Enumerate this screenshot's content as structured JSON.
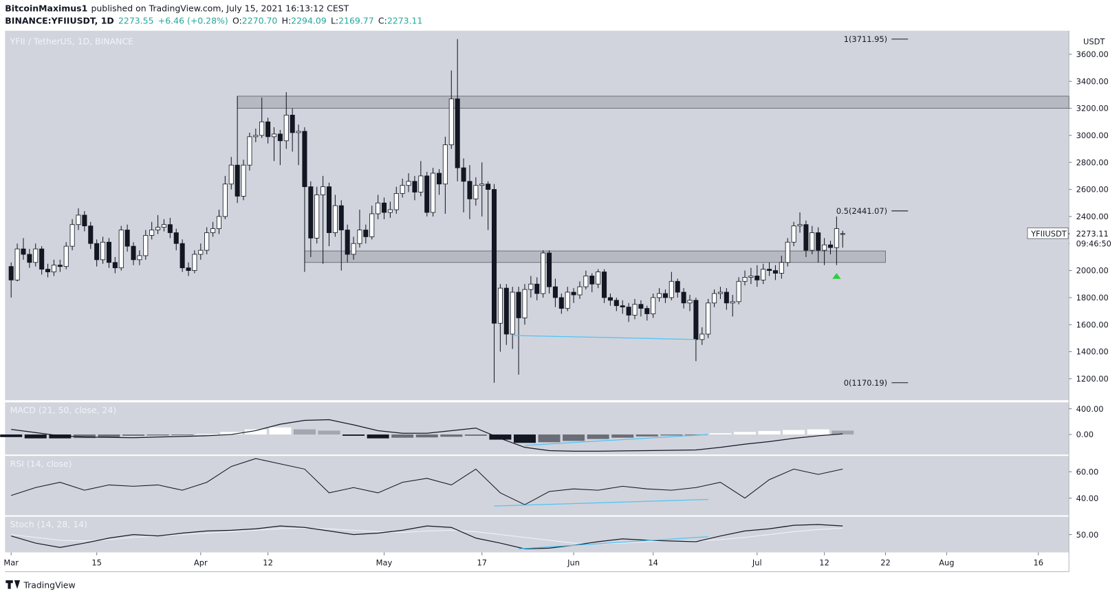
{
  "header": {
    "author": "BitcoinMaximus1",
    "published": "published on TradingView.com, July 15, 2021 16:13:12 CEST",
    "symbol": "BINANCE:YFIIUSDT, 1D",
    "last": "2273.55",
    "change": "+6.46 (+0.28%)",
    "ohlc": [
      {
        "key": "O:",
        "value": "2270.70"
      },
      {
        "key": "H:",
        "value": "2294.09"
      },
      {
        "key": "L:",
        "value": "2169.77"
      },
      {
        "key": "C:",
        "value": "2273.11"
      }
    ]
  },
  "footer": {
    "brand": "TradingView"
  },
  "chart_data": {
    "type": "candlestick",
    "title": "YFII / TetherUS, 1D, BINANCE",
    "y_axis_label": "USDT",
    "candle_colors": {
      "up": "#ffffff",
      "down": "#131722"
    },
    "xlim": [
      "2021-02-28",
      "2021-08-21"
    ],
    "ylim": [
      1041,
      3774
    ],
    "yticks": [
      {
        "value": 1200,
        "label": "1200.00"
      },
      {
        "value": 1400,
        "label": "1400.00"
      },
      {
        "value": 1600,
        "label": "1600.00"
      },
      {
        "value": 1800,
        "label": "1800.00"
      },
      {
        "value": 2000,
        "label": "2000.00"
      },
      {
        "value": 2200,
        "label": "2200.00"
      },
      {
        "value": 2400,
        "label": "2400.00"
      },
      {
        "value": 2600,
        "label": "2600.00"
      },
      {
        "value": 2800,
        "label": "2800.00"
      },
      {
        "value": 3000,
        "label": "3000.00"
      },
      {
        "value": 3200,
        "label": "3200.00"
      },
      {
        "value": 3400,
        "label": "3400.00"
      },
      {
        "value": 3600,
        "label": "3600.00"
      }
    ],
    "xticks": [
      {
        "value": "2021-03-01",
        "label": "Mar"
      },
      {
        "value": "2021-03-15",
        "label": "15"
      },
      {
        "value": "2021-04-01",
        "label": "Apr"
      },
      {
        "value": "2021-04-12",
        "label": "12"
      },
      {
        "value": "2021-05-01",
        "label": "May"
      },
      {
        "value": "2021-05-17",
        "label": "17"
      },
      {
        "value": "2021-06-01",
        "label": "Jun"
      },
      {
        "value": "2021-06-14",
        "label": "14"
      },
      {
        "value": "2021-07-01",
        "label": "Jul"
      },
      {
        "value": "2021-07-12",
        "label": "12"
      },
      {
        "value": "2021-07-22",
        "label": "22"
      },
      {
        "value": "2021-08-01",
        "label": "Aug"
      },
      {
        "value": "2021-08-16",
        "label": "16"
      }
    ],
    "x": [
      "2021-03-01",
      "2021-03-02",
      "2021-03-03",
      "2021-03-04",
      "2021-03-05",
      "2021-03-06",
      "2021-03-07",
      "2021-03-08",
      "2021-03-09",
      "2021-03-10",
      "2021-03-11",
      "2021-03-12",
      "2021-03-13",
      "2021-03-14",
      "2021-03-15",
      "2021-03-16",
      "2021-03-17",
      "2021-03-18",
      "2021-03-19",
      "2021-03-20",
      "2021-03-21",
      "2021-03-22",
      "2021-03-23",
      "2021-03-24",
      "2021-03-25",
      "2021-03-26",
      "2021-03-27",
      "2021-03-28",
      "2021-03-29",
      "2021-03-30",
      "2021-03-31",
      "2021-04-01",
      "2021-04-02",
      "2021-04-03",
      "2021-04-04",
      "2021-04-05",
      "2021-04-06",
      "2021-04-07",
      "2021-04-08",
      "2021-04-09",
      "2021-04-10",
      "2021-04-11",
      "2021-04-12",
      "2021-04-13",
      "2021-04-14",
      "2021-04-15",
      "2021-04-16",
      "2021-04-17",
      "2021-04-18",
      "2021-04-19",
      "2021-04-20",
      "2021-04-21",
      "2021-04-22",
      "2021-04-23",
      "2021-04-24",
      "2021-04-25",
      "2021-04-26",
      "2021-04-27",
      "2021-04-28",
      "2021-04-29",
      "2021-04-30",
      "2021-05-01",
      "2021-05-02",
      "2021-05-03",
      "2021-05-04",
      "2021-05-05",
      "2021-05-06",
      "2021-05-07",
      "2021-05-08",
      "2021-05-09",
      "2021-05-10",
      "2021-05-11",
      "2021-05-12",
      "2021-05-13",
      "2021-05-14",
      "2021-05-15",
      "2021-05-16",
      "2021-05-17",
      "2021-05-18",
      "2021-05-19",
      "2021-05-20",
      "2021-05-21",
      "2021-05-22",
      "2021-05-23",
      "2021-05-24",
      "2021-05-25",
      "2021-05-26",
      "2021-05-27",
      "2021-05-28",
      "2021-05-29",
      "2021-05-30",
      "2021-05-31",
      "2021-06-01",
      "2021-06-02",
      "2021-06-03",
      "2021-06-04",
      "2021-06-05",
      "2021-06-06",
      "2021-06-07",
      "2021-06-08",
      "2021-06-09",
      "2021-06-10",
      "2021-06-11",
      "2021-06-12",
      "2021-06-13",
      "2021-06-14",
      "2021-06-15",
      "2021-06-16",
      "2021-06-17",
      "2021-06-18",
      "2021-06-19",
      "2021-06-20",
      "2021-06-21",
      "2021-06-22",
      "2021-06-23",
      "2021-06-24",
      "2021-06-25",
      "2021-06-26",
      "2021-06-27",
      "2021-06-28",
      "2021-06-29",
      "2021-06-30",
      "2021-07-01",
      "2021-07-02",
      "2021-07-03",
      "2021-07-04",
      "2021-07-05",
      "2021-07-06",
      "2021-07-07",
      "2021-07-08",
      "2021-07-09",
      "2021-07-10",
      "2021-07-11",
      "2021-07-12",
      "2021-07-13",
      "2021-07-14",
      "2021-07-15"
    ],
    "open": [
      2030,
      1930,
      2160,
      2120,
      2060,
      2160,
      2010,
      1990,
      2040,
      2030,
      2180,
      2340,
      2410,
      2330,
      2200,
      2080,
      2210,
      2060,
      2020,
      2300,
      2180,
      2080,
      2110,
      2260,
      2300,
      2320,
      2340,
      2280,
      2200,
      2020,
      2000,
      2120,
      2150,
      2280,
      2310,
      2400,
      2640,
      2780,
      2550,
      2780,
      2990,
      3000,
      3100,
      2990,
      3010,
      2960,
      3150,
      3020,
      3030,
      2620,
      2240,
      2560,
      2620,
      2280,
      2480,
      2300,
      2120,
      2200,
      2300,
      2250,
      2420,
      2500,
      2430,
      2450,
      2570,
      2630,
      2660,
      2580,
      2700,
      2430,
      2720,
      2640,
      2930,
      3270,
      2760,
      2660,
      2530,
      2630,
      2640,
      2600,
      1610,
      1870,
      1530,
      1840,
      1650,
      1860,
      1900,
      1830,
      2130,
      1880,
      1800,
      1720,
      1840,
      1820,
      1880,
      1960,
      1900,
      1990,
      1800,
      1780,
      1740,
      1730,
      1670,
      1750,
      1720,
      1680,
      1800,
      1830,
      1800,
      1920,
      1840,
      1760,
      1780,
      1490,
      1530,
      1760,
      1830,
      1840,
      1760,
      1770,
      1920,
      1950,
      1960,
      1930,
      2010,
      2000,
      1980,
      2060,
      2210,
      2330,
      2340,
      2150,
      2280,
      2150,
      2190,
      2170,
      2270.7
    ],
    "high": [
      2060,
      2200,
      2240,
      2160,
      2200,
      2180,
      2050,
      2080,
      2080,
      2210,
      2380,
      2460,
      2440,
      2360,
      2230,
      2250,
      2240,
      2100,
      2330,
      2340,
      2210,
      2150,
      2300,
      2360,
      2410,
      2380,
      2390,
      2310,
      2230,
      2060,
      2150,
      2200,
      2320,
      2360,
      2450,
      2700,
      2840,
      3290,
      2820,
      3020,
      3050,
      3280,
      3130,
      3060,
      3040,
      3320,
      3200,
      3080,
      3060,
      2660,
      2620,
      2700,
      2650,
      2560,
      2520,
      2340,
      2250,
      2450,
      2340,
      2480,
      2560,
      2540,
      2510,
      2620,
      2680,
      2720,
      2700,
      2810,
      2730,
      2760,
      2750,
      2990,
      3480,
      3711.95,
      2830,
      2780,
      2690,
      2800,
      2660,
      2640,
      1900,
      1900,
      1880,
      1880,
      1900,
      1960,
      1950,
      2150,
      2150,
      1940,
      1830,
      1880,
      1870,
      1920,
      2000,
      1980,
      2010,
      2010,
      1830,
      1800,
      1780,
      1760,
      1790,
      1780,
      1740,
      1830,
      1870,
      1860,
      1990,
      1940,
      1870,
      1820,
      1800,
      1580,
      1790,
      1860,
      1880,
      1870,
      1820,
      1950,
      2000,
      2020,
      2040,
      2050,
      2060,
      2040,
      2110,
      2240,
      2360,
      2430,
      2370,
      2330,
      2320,
      2240,
      2220,
      2400,
      2294.09
    ],
    "low": [
      1800,
      1920,
      2080,
      2020,
      2030,
      1970,
      1950,
      1960,
      1990,
      2010,
      2150,
      2300,
      2290,
      2160,
      2030,
      2050,
      2020,
      1980,
      2000,
      2140,
      2040,
      2040,
      2080,
      2230,
      2270,
      2290,
      2240,
      2150,
      1990,
      1960,
      1980,
      2080,
      2120,
      2250,
      2270,
      2380,
      2600,
      2500,
      2520,
      2740,
      2950,
      2980,
      2940,
      2810,
      2780,
      2900,
      2880,
      2780,
      1990,
      2100,
      2200,
      2050,
      2180,
      2250,
      2000,
      2060,
      2080,
      2170,
      2200,
      2230,
      2380,
      2380,
      2390,
      2420,
      2540,
      2580,
      2520,
      2550,
      2400,
      2400,
      2560,
      2420,
      2900,
      2660,
      2430,
      2380,
      2480,
      2400,
      2300,
      1170.19,
      1400,
      1450,
      1420,
      1230,
      1600,
      1800,
      1780,
      1800,
      1830,
      1730,
      1680,
      1700,
      1760,
      1790,
      1860,
      1840,
      1870,
      1760,
      1740,
      1700,
      1680,
      1620,
      1640,
      1660,
      1630,
      1650,
      1770,
      1760,
      1780,
      1800,
      1720,
      1700,
      1330,
      1450,
      1500,
      1730,
      1790,
      1710,
      1660,
      1750,
      1890,
      1900,
      1880,
      1900,
      1960,
      1930,
      1940,
      2030,
      2180,
      2280,
      2100,
      2120,
      2060,
      2040,
      2120,
      2040,
      2169.77
    ],
    "close": [
      1930,
      2160,
      2120,
      2060,
      2160,
      2010,
      1990,
      2040,
      2030,
      2180,
      2340,
      2410,
      2330,
      2200,
      2080,
      2210,
      2060,
      2020,
      2300,
      2180,
      2080,
      2110,
      2260,
      2300,
      2320,
      2340,
      2280,
      2200,
      2020,
      2000,
      2120,
      2150,
      2280,
      2310,
      2400,
      2640,
      2780,
      2550,
      2780,
      2990,
      3000,
      3100,
      2990,
      3010,
      2960,
      3150,
      3020,
      3030,
      2620,
      2240,
      2560,
      2620,
      2280,
      2480,
      2300,
      2120,
      2200,
      2300,
      2250,
      2420,
      2500,
      2430,
      2450,
      2570,
      2630,
      2660,
      2580,
      2700,
      2430,
      2720,
      2640,
      2930,
      3270,
      2760,
      2660,
      2530,
      2630,
      2640,
      2600,
      1610,
      1870,
      1530,
      1840,
      1650,
      1860,
      1900,
      1830,
      2130,
      1880,
      1800,
      1720,
      1840,
      1820,
      1880,
      1960,
      1900,
      1990,
      1800,
      1780,
      1740,
      1730,
      1670,
      1750,
      1720,
      1680,
      1800,
      1830,
      1800,
      1920,
      1840,
      1760,
      1780,
      1490,
      1530,
      1760,
      1830,
      1840,
      1760,
      1770,
      1920,
      1950,
      1960,
      1930,
      2010,
      2000,
      1980,
      2060,
      2210,
      2330,
      2340,
      2150,
      2280,
      2150,
      2190,
      2170,
      2310,
      2273.11
    ],
    "zones": [
      {
        "from": 3200,
        "to": 3290,
        "start": "2021-04-07",
        "end": "2021-08-21"
      },
      {
        "from": 2060,
        "to": 2145,
        "start": "2021-04-18",
        "end": "2021-07-22"
      }
    ],
    "fib": [
      {
        "label": "1(3711.95)",
        "value": 3711.95
      },
      {
        "label": "0.5(2441.07)",
        "value": 2441.07
      },
      {
        "label": "0(1170.19)",
        "value": 1170.19
      }
    ],
    "trendline": {
      "x": [
        "2021-05-22",
        "2021-06-21"
      ],
      "values": [
        1520,
        1490
      ],
      "color": "#4fc3f7"
    },
    "last_price": {
      "symbol": "YFIIUSDT",
      "value": 2273.11,
      "countdown": "09:46:50"
    },
    "signal_marker": {
      "x": "2021-07-14",
      "value": 1960,
      "color": "#2ecc40"
    },
    "indicators": [
      {
        "type": "macd",
        "title": "MACD (21, 50, close, 24)",
        "ylim": [
          -311,
          500
        ],
        "yticks": [
          {
            "value": 0,
            "label": "0.00"
          },
          {
            "value": 400,
            "label": "400.00"
          }
        ],
        "x": [
          "2021-03-01",
          "2021-03-05",
          "2021-03-09",
          "2021-03-13",
          "2021-03-17",
          "2021-03-21",
          "2021-03-25",
          "2021-03-29",
          "2021-04-02",
          "2021-04-06",
          "2021-04-10",
          "2021-04-14",
          "2021-04-18",
          "2021-04-22",
          "2021-04-26",
          "2021-04-30",
          "2021-05-04",
          "2021-05-08",
          "2021-05-12",
          "2021-05-16",
          "2021-05-20",
          "2021-05-24",
          "2021-05-28",
          "2021-06-01",
          "2021-06-05",
          "2021-06-09",
          "2021-06-13",
          "2021-06-17",
          "2021-06-21",
          "2021-06-25",
          "2021-06-29",
          "2021-07-03",
          "2021-07-07",
          "2021-07-11",
          "2021-07-15"
        ],
        "macd": [
          80,
          30,
          -20,
          -40,
          -45,
          -50,
          -40,
          -30,
          -20,
          0,
          60,
          160,
          220,
          230,
          150,
          60,
          20,
          20,
          60,
          100,
          -60,
          -200,
          -250,
          -260,
          -260,
          -255,
          -250,
          -245,
          -240,
          -200,
          -150,
          -110,
          -60,
          -20,
          10
        ],
        "histogram": [
          -40,
          -60,
          -60,
          -55,
          -40,
          -20,
          -15,
          -10,
          10,
          40,
          80,
          110,
          80,
          60,
          -20,
          -60,
          -50,
          -45,
          -35,
          -20,
          -80,
          -130,
          -120,
          -100,
          -70,
          -50,
          -30,
          -15,
          -5,
          20,
          40,
          55,
          70,
          80,
          60
        ],
        "line_color": "#131722",
        "trendline": {
          "x": [
            "2021-05-24",
            "2021-06-23"
          ],
          "values": [
            -170,
            0
          ],
          "color": "#4fc3f7"
        }
      },
      {
        "type": "rsi",
        "title": "RSI (14, close)",
        "ylim": [
          27,
          72
        ],
        "yticks": [
          {
            "value": 40,
            "label": "40.00"
          },
          {
            "value": 60,
            "label": "60.00"
          }
        ],
        "x": [
          "2021-03-01",
          "2021-03-05",
          "2021-03-09",
          "2021-03-13",
          "2021-03-17",
          "2021-03-21",
          "2021-03-25",
          "2021-03-29",
          "2021-04-02",
          "2021-04-06",
          "2021-04-10",
          "2021-04-14",
          "2021-04-18",
          "2021-04-22",
          "2021-04-26",
          "2021-04-30",
          "2021-05-04",
          "2021-05-08",
          "2021-05-12",
          "2021-05-16",
          "2021-05-20",
          "2021-05-24",
          "2021-05-28",
          "2021-06-01",
          "2021-06-05",
          "2021-06-09",
          "2021-06-13",
          "2021-06-17",
          "2021-06-21",
          "2021-06-25",
          "2021-06-29",
          "2021-07-03",
          "2021-07-07",
          "2021-07-11",
          "2021-07-15"
        ],
        "values": [
          42,
          48,
          52,
          46,
          50,
          49,
          50,
          46,
          52,
          64,
          70,
          66,
          62,
          44,
          48,
          44,
          52,
          55,
          50,
          62,
          44,
          35,
          45,
          47,
          46,
          49,
          47,
          46,
          48,
          52,
          40,
          54,
          62,
          58,
          62
        ],
        "line_color": "#131722",
        "trendline": {
          "x": [
            "2021-05-19",
            "2021-06-23"
          ],
          "values": [
            34,
            39
          ],
          "color": "#4fc3f7"
        }
      },
      {
        "type": "stoch",
        "title": "Stoch (14, 28, 14)",
        "ylim": [
          25,
          75
        ],
        "yticks": [
          {
            "value": 50,
            "label": "50.00"
          }
        ],
        "x": [
          "2021-03-01",
          "2021-03-05",
          "2021-03-09",
          "2021-03-13",
          "2021-03-17",
          "2021-03-21",
          "2021-03-25",
          "2021-03-29",
          "2021-04-02",
          "2021-04-06",
          "2021-04-10",
          "2021-04-14",
          "2021-04-18",
          "2021-04-22",
          "2021-04-26",
          "2021-04-30",
          "2021-05-04",
          "2021-05-08",
          "2021-05-12",
          "2021-05-16",
          "2021-05-20",
          "2021-05-24",
          "2021-05-28",
          "2021-06-01",
          "2021-06-05",
          "2021-06-09",
          "2021-06-13",
          "2021-06-17",
          "2021-06-21",
          "2021-06-25",
          "2021-06-29",
          "2021-07-03",
          "2021-07-07",
          "2021-07-11",
          "2021-07-15"
        ],
        "k": [
          48,
          38,
          32,
          38,
          45,
          50,
          48,
          52,
          55,
          56,
          58,
          62,
          60,
          55,
          50,
          52,
          56,
          62,
          60,
          45,
          38,
          30,
          31,
          35,
          40,
          44,
          42,
          41,
          40,
          48,
          55,
          58,
          63,
          64,
          62
        ],
        "d": [
          50,
          46,
          42,
          41,
          43,
          46,
          48,
          50,
          52,
          54,
          56,
          58,
          59,
          58,
          56,
          54,
          53,
          55,
          56,
          54,
          50,
          46,
          42,
          38,
          37,
          38,
          40,
          41,
          41,
          43,
          46,
          50,
          54,
          57,
          59
        ],
        "colors": {
          "k": "#131722",
          "d": "#f0f3fa"
        },
        "trendline": {
          "x": [
            "2021-05-23",
            "2021-06-23"
          ],
          "values": [
            30,
            47
          ],
          "color": "#4fc3f7"
        }
      }
    ]
  }
}
